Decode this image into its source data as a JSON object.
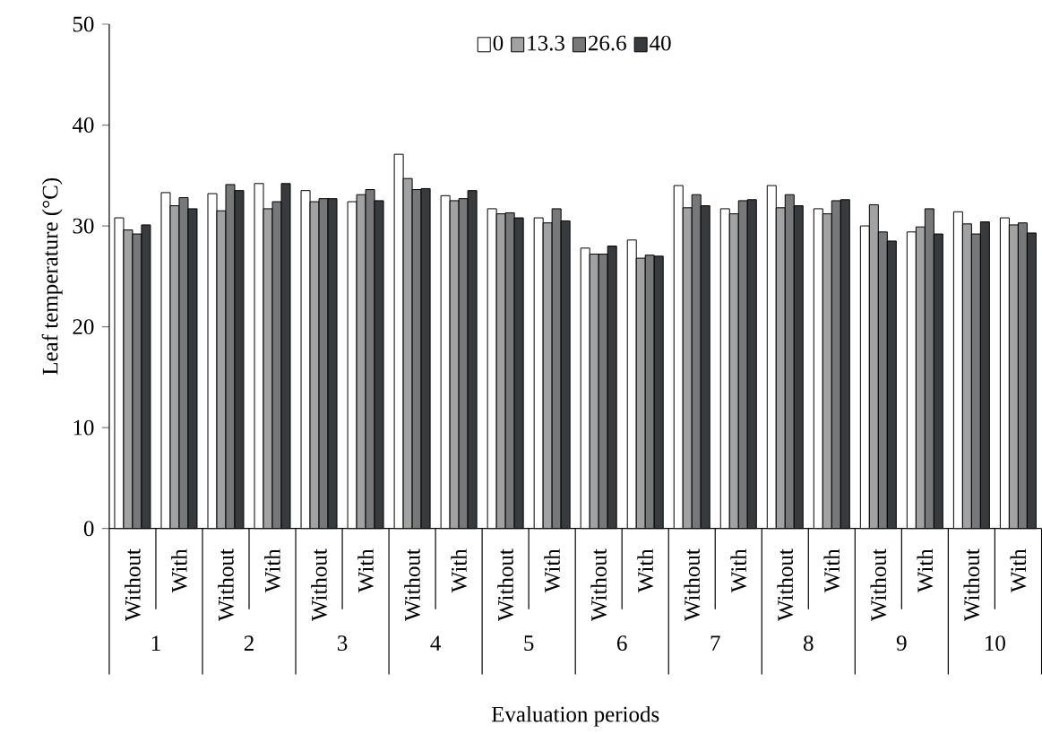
{
  "chart_data": {
    "type": "bar",
    "ylabel": "Leaf temperature (°C)",
    "xlabel": "Evaluation periods",
    "categories": [
      "Without",
      "With",
      "Without",
      "With",
      "Without",
      "With",
      "Without",
      "With",
      "Without",
      "With",
      "Without",
      "With",
      "Without",
      "With",
      "Without",
      "With",
      "Without",
      "With",
      "Without",
      "With"
    ],
    "annotations": [
      "1",
      "2",
      "3",
      "4",
      "5",
      "6",
      "7",
      "8",
      "9",
      "10"
    ],
    "ylim": [
      0,
      50
    ],
    "yticks": [
      0,
      10,
      20,
      30,
      40,
      50
    ],
    "legend": "top",
    "series": [
      {
        "name": "0",
        "color": "#ffffff",
        "values": [
          30.8,
          33.3,
          33.2,
          34.2,
          33.5,
          32.4,
          37.1,
          33.0,
          31.7,
          30.8,
          27.8,
          28.6,
          34.0,
          31.7,
          34.0,
          31.7,
          30.0,
          29.4,
          31.4,
          30.8
        ]
      },
      {
        "name": "13.3",
        "color": "#a0a2a3",
        "values": [
          29.6,
          32.0,
          31.5,
          31.7,
          32.4,
          33.1,
          34.7,
          32.5,
          31.2,
          30.3,
          27.2,
          26.8,
          31.8,
          31.2,
          31.8,
          31.2,
          32.1,
          29.9,
          30.2,
          30.1
        ]
      },
      {
        "name": "26.6",
        "color": "#76787a",
        "values": [
          29.2,
          32.8,
          34.1,
          32.4,
          32.7,
          33.6,
          33.6,
          32.7,
          31.3,
          31.7,
          27.2,
          27.1,
          33.1,
          32.5,
          33.1,
          32.5,
          29.4,
          31.7,
          29.2,
          30.3
        ]
      },
      {
        "name": "40",
        "color": "#383b3d",
        "values": [
          30.1,
          31.7,
          33.5,
          34.2,
          32.7,
          32.5,
          33.7,
          33.5,
          30.8,
          30.5,
          28.0,
          27.0,
          32.0,
          32.6,
          32.0,
          32.6,
          28.5,
          29.2,
          30.4,
          29.3
        ]
      }
    ]
  }
}
